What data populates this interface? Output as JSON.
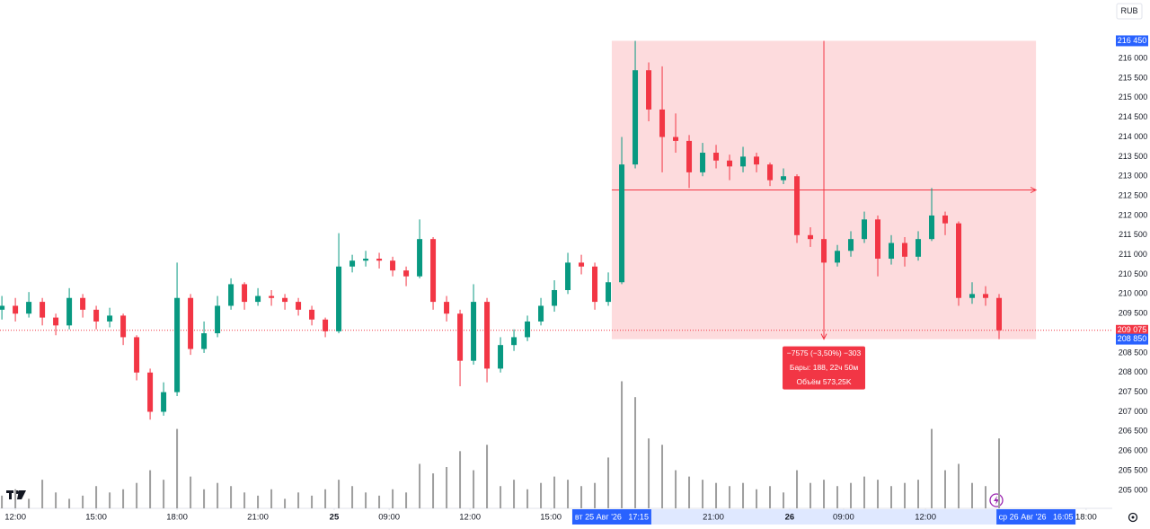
{
  "chart_data": {
    "type": "candlestick",
    "currency": "RUB",
    "up_color": "#089981",
    "down_color": "#f23645",
    "volume_color": "#9e9e9e",
    "xlim": [
      -0.57,
      40.7
    ],
    "ylim": [
      204540,
      217490
    ],
    "volume_lim": [
      0,
      160
    ],
    "x": [
      -0.5,
      0,
      0.5,
      1,
      1.5,
      2,
      2.5,
      3,
      3.5,
      4,
      4.5,
      5,
      5.5,
      6,
      6.5,
      7,
      7.5,
      8,
      8.5,
      9,
      9.5,
      10,
      10.5,
      11,
      11.5,
      12,
      12.5,
      13,
      13.5,
      14,
      14.5,
      15,
      15.5,
      16,
      16.5,
      17,
      17.5,
      18,
      18.5,
      19,
      19.5,
      20,
      20.5,
      21,
      21.5,
      22,
      22.5,
      23,
      23.5,
      24,
      24.5,
      25,
      25.5,
      26,
      26.5,
      27,
      27.5,
      28,
      28.5,
      29,
      29.5,
      30,
      30.5,
      31,
      31.5,
      32,
      32.5,
      33,
      33.5,
      34,
      34.5,
      35,
      35.5,
      36,
      36.5
    ],
    "open": [
      209600,
      209700,
      209500,
      209800,
      209400,
      209200,
      209900,
      209600,
      209300,
      209450,
      208900,
      208000,
      207000,
      207500,
      209900,
      208600,
      209000,
      209700,
      210250,
      209800,
      209950,
      209900,
      209800,
      209600,
      209350,
      209050,
      210700,
      210850,
      210900,
      210850,
      210600,
      210450,
      211400,
      209800,
      209500,
      208300,
      209800,
      208100,
      208700,
      208900,
      209300,
      209700,
      210100,
      210800,
      210700,
      209800,
      210300,
      213300,
      215700,
      214700,
      214000,
      213900,
      213100,
      213600,
      213400,
      213250,
      213500,
      213300,
      212900,
      213000,
      211500,
      211400,
      210800,
      211100,
      211400,
      211900,
      210900,
      211300,
      210950,
      211400,
      212000,
      211800,
      209900,
      210000,
      209900
    ],
    "high": [
      209950,
      209900,
      210050,
      209900,
      209500,
      210150,
      210000,
      209700,
      209650,
      209500,
      208950,
      208100,
      207750,
      210800,
      210000,
      209300,
      209950,
      210400,
      210300,
      210150,
      210100,
      210000,
      209900,
      209700,
      209400,
      211550,
      211000,
      211100,
      211050,
      210950,
      210700,
      211900,
      211450,
      209950,
      209600,
      210250,
      209900,
      208900,
      209100,
      209450,
      209900,
      210350,
      211050,
      211000,
      210800,
      210550,
      214000,
      216450,
      215900,
      215800,
      214600,
      214050,
      213850,
      213800,
      213550,
      213750,
      213600,
      213350,
      213200,
      213050,
      211700,
      211500,
      211250,
      211600,
      212100,
      212000,
      211500,
      211450,
      211600,
      212700,
      212100,
      211850,
      210300,
      210200,
      210000
    ],
    "low": [
      209350,
      209300,
      209400,
      209200,
      208950,
      209100,
      209400,
      209100,
      209150,
      208700,
      207800,
      206800,
      206900,
      207400,
      208450,
      208500,
      208900,
      209600,
      209600,
      209700,
      209700,
      209600,
      209450,
      209200,
      208900,
      209000,
      210550,
      210700,
      210650,
      210450,
      210200,
      210400,
      209600,
      209300,
      207650,
      208200,
      207750,
      208000,
      208550,
      208800,
      209200,
      209550,
      210000,
      210500,
      209600,
      209700,
      210250,
      213200,
      214400,
      213100,
      213600,
      212700,
      213000,
      213200,
      212900,
      213100,
      213100,
      212750,
      212800,
      211300,
      211200,
      210600,
      210700,
      210950,
      211300,
      210450,
      210750,
      210700,
      210850,
      211350,
      211500,
      209700,
      209750,
      209700,
      208850
    ],
    "close": [
      209700,
      209500,
      209800,
      209400,
      209200,
      209900,
      209600,
      209300,
      209450,
      208900,
      208000,
      207000,
      207500,
      209900,
      208600,
      209000,
      209700,
      210250,
      209800,
      209950,
      209900,
      209800,
      209600,
      209350,
      209050,
      210700,
      210850,
      210900,
      210850,
      210600,
      210450,
      211400,
      209800,
      209500,
      208300,
      209800,
      208100,
      208700,
      208900,
      209300,
      209700,
      210100,
      210800,
      210700,
      209800,
      210300,
      213300,
      215700,
      214700,
      214000,
      213900,
      213100,
      213600,
      213400,
      213250,
      213500,
      213300,
      212900,
      213000,
      211500,
      211400,
      210800,
      211100,
      211400,
      211900,
      210900,
      211300,
      210950,
      211400,
      212000,
      211800,
      209900,
      210000,
      209900,
      209075
    ],
    "volume": [
      4,
      6,
      3,
      9,
      5,
      3,
      4,
      7,
      5,
      6,
      8,
      12,
      9,
      25,
      10,
      6,
      8,
      7,
      5,
      4,
      6,
      3,
      5,
      4,
      6,
      9,
      7,
      5,
      4,
      6,
      5,
      14,
      11,
      13,
      18,
      12,
      20,
      7,
      9,
      6,
      8,
      10,
      9,
      7,
      8,
      16,
      40,
      35,
      22,
      20,
      12,
      10,
      9,
      8,
      7,
      8,
      6,
      7,
      5,
      12,
      8,
      9,
      7,
      8,
      10,
      9,
      7,
      8,
      9,
      25,
      12,
      14,
      8,
      7,
      22
    ],
    "yticks": [
      {
        "value": 205000,
        "label": "205 000"
      },
      {
        "value": 205500,
        "label": "205 500"
      },
      {
        "value": 206000,
        "label": "206 000"
      },
      {
        "value": 206500,
        "label": "206 500"
      },
      {
        "value": 207000,
        "label": "207 000"
      },
      {
        "value": 207500,
        "label": "207 500"
      },
      {
        "value": 208000,
        "label": "208 000"
      },
      {
        "value": 208500,
        "label": "208 500"
      },
      {
        "value": 209000,
        "label": "209 000"
      },
      {
        "value": 209500,
        "label": "209 500"
      },
      {
        "value": 210000,
        "label": "210 000"
      },
      {
        "value": 210500,
        "label": "210 500"
      },
      {
        "value": 211000,
        "label": "211 000"
      },
      {
        "value": 211500,
        "label": "211 500"
      },
      {
        "value": 212000,
        "label": "212 000"
      },
      {
        "value": 212500,
        "label": "212 500"
      },
      {
        "value": 213000,
        "label": "213 000"
      },
      {
        "value": 213500,
        "label": "213 500"
      },
      {
        "value": 214000,
        "label": "214 000"
      },
      {
        "value": 214500,
        "label": "214 500"
      },
      {
        "value": 215000,
        "label": "215 000"
      },
      {
        "value": 215500,
        "label": "215 500"
      },
      {
        "value": 216000,
        "label": "216 000"
      }
    ],
    "xticks": [
      {
        "value": 0,
        "label": "12:00"
      },
      {
        "value": 3,
        "label": "15:00"
      },
      {
        "value": 6,
        "label": "18:00"
      },
      {
        "value": 9,
        "label": "21:00"
      },
      {
        "value": 11.83,
        "label": "25"
      },
      {
        "value": 13.87,
        "label": "09:00"
      },
      {
        "value": 16.87,
        "label": "12:00"
      },
      {
        "value": 19.87,
        "label": "15:00"
      },
      {
        "value": 25.9,
        "label": "21:00"
      },
      {
        "value": 28.73,
        "label": "26"
      },
      {
        "value": 30.73,
        "label": "09:00"
      },
      {
        "value": 33.77,
        "label": "12:00"
      },
      {
        "value": 39.73,
        "label": "18:00"
      }
    ],
    "price_markers": [
      {
        "value": 216450,
        "label": "216 450",
        "color": "#2962ff"
      },
      {
        "value": 209075,
        "label": "209 075",
        "color": "#f23645"
      },
      {
        "value": 208850,
        "label": "208 850",
        "color": "#2962ff"
      }
    ],
    "x_markers": [
      {
        "value": 22.13,
        "label": "вт 25 Авг '26   17:15"
      },
      {
        "value": 37.87,
        "label": "ср 26 Авг '26   16:05"
      }
    ],
    "measure": {
      "price_range": [
        216450,
        208850
      ],
      "x_range": [
        22.13,
        37.87
      ],
      "color": "#f23645",
      "lines": [
        "−7575 (−3,50%) −303",
        "Бары: 188, 22ч 50м",
        "Объём 573,25K"
      ]
    }
  }
}
